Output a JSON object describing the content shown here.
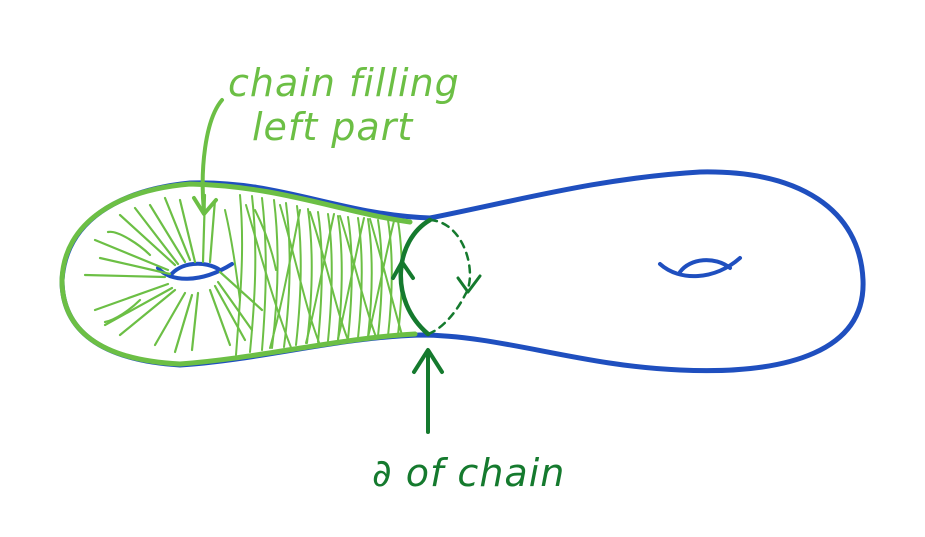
{
  "labels": {
    "chain_line1": "chain filling",
    "chain_line2": "left part",
    "boundary": "∂ of chain"
  },
  "colors": {
    "surface": "#1f4fbf",
    "chain_fill": "#6cbf45",
    "boundary": "#157a2e"
  }
}
